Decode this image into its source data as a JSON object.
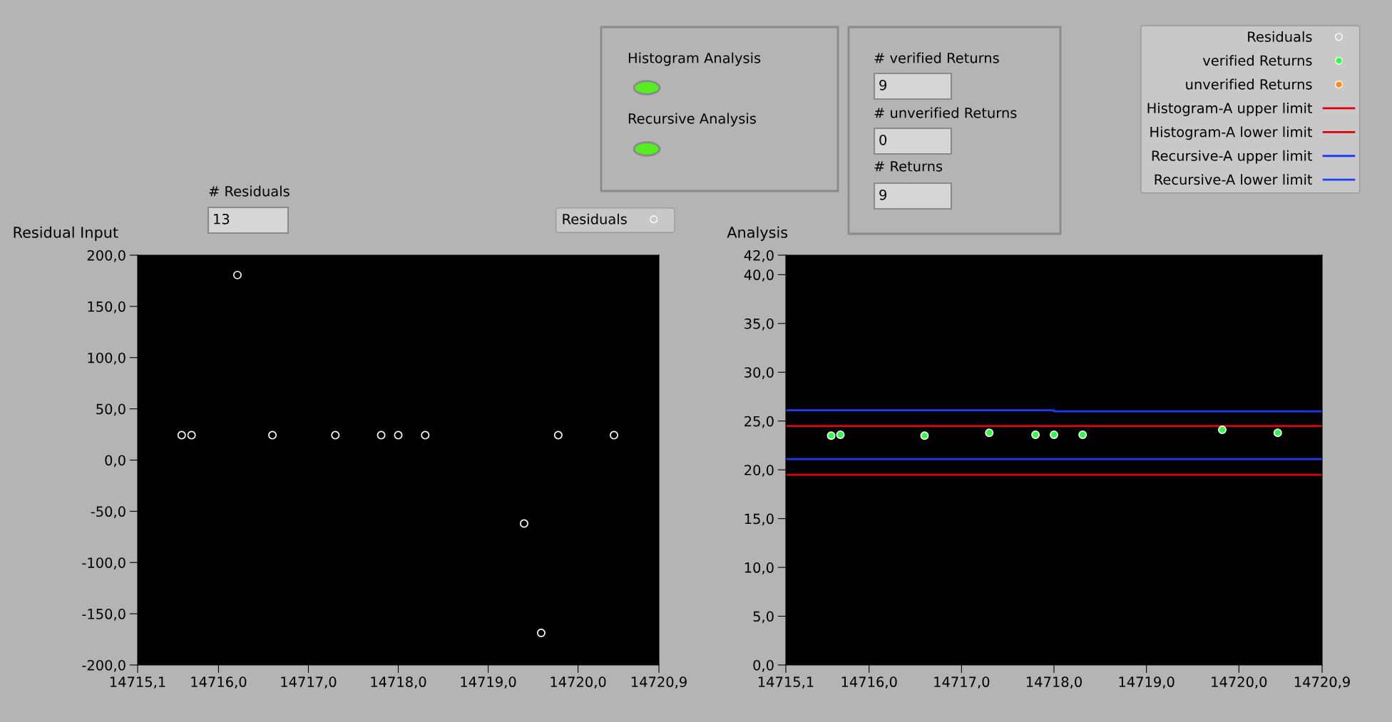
{
  "chart_data": [
    {
      "type": "scatter",
      "title": "Residual Input",
      "legend": "top right",
      "grid": false,
      "xlim": [
        14715.1,
        14720.9
      ],
      "xticks": [
        {
          "value": 14715.1,
          "label": "14715,1"
        },
        {
          "value": 14716.0,
          "label": "14716,0"
        },
        {
          "value": 14717.0,
          "label": "14717,0"
        },
        {
          "value": 14718.0,
          "label": "14718,0"
        },
        {
          "value": 14719.0,
          "label": "14719,0"
        },
        {
          "value": 14720.0,
          "label": "14720,0"
        },
        {
          "value": 14720.9,
          "label": "14720,9"
        }
      ],
      "ylim": [
        -200,
        200
      ],
      "yticks": [
        {
          "value": -200,
          "label": "-200,0"
        },
        {
          "value": -150,
          "label": "-150,0"
        },
        {
          "value": -100,
          "label": "-100,0"
        },
        {
          "value": -50,
          "label": "-50,0"
        },
        {
          "value": 0,
          "label": "0,0"
        },
        {
          "value": 50,
          "label": "50,0"
        },
        {
          "value": 100,
          "label": "100,0"
        },
        {
          "value": 150,
          "label": "150,0"
        },
        {
          "value": 200,
          "label": "200,0"
        }
      ],
      "series": [
        {
          "name": "Residuals",
          "type": "scatter",
          "marker": "circle",
          "color": "#ffffff",
          "x": [
            14715.59,
            14715.7,
            14716.21,
            14716.6,
            14717.3,
            14717.81,
            14718.0,
            14718.3,
            14719.4,
            14719.59,
            14719.78,
            14720.4
          ],
          "values": [
            24.3,
            24.3,
            180.6,
            24.3,
            24.3,
            24.3,
            24.3,
            24.3,
            -61.9,
            -168.7,
            24.3,
            24.3
          ]
        }
      ]
    },
    {
      "type": "scatter",
      "title": "Analysis",
      "legend": "top right",
      "grid": false,
      "xlim": [
        14715.1,
        14720.9
      ],
      "xticks": [
        {
          "value": 14715.1,
          "label": "14715,1"
        },
        {
          "value": 14716.0,
          "label": "14716,0"
        },
        {
          "value": 14717.0,
          "label": "14717,0"
        },
        {
          "value": 14718.0,
          "label": "14718,0"
        },
        {
          "value": 14719.0,
          "label": "14719,0"
        },
        {
          "value": 14720.0,
          "label": "14720,0"
        },
        {
          "value": 14720.9,
          "label": "14720,9"
        }
      ],
      "ylim": [
        0,
        42
      ],
      "yticks": [
        {
          "value": 0,
          "label": "0,0"
        },
        {
          "value": 5,
          "label": "5,0"
        },
        {
          "value": 10,
          "label": "10,0"
        },
        {
          "value": 15,
          "label": "15,0"
        },
        {
          "value": 20,
          "label": "20,0"
        },
        {
          "value": 25,
          "label": "25,0"
        },
        {
          "value": 30,
          "label": "30,0"
        },
        {
          "value": 35,
          "label": "35,0"
        },
        {
          "value": 40,
          "label": "40,0"
        },
        {
          "value": 42,
          "label": "42,0"
        }
      ],
      "series": [
        {
          "name": "Residuals",
          "type": "scatter",
          "marker": "circle",
          "color": "#ffffff"
        },
        {
          "name": "verified Returns",
          "type": "scatter",
          "marker": "circle",
          "color": "#33ff44",
          "x": [
            14715.59,
            14715.69,
            14716.6,
            14717.3,
            14717.8,
            14718.0,
            14718.31,
            14719.82,
            14720.42
          ],
          "values": [
            23.5,
            23.6,
            23.5,
            23.8,
            23.6,
            23.6,
            23.6,
            24.1,
            23.8
          ]
        },
        {
          "name": "unverified Returns",
          "type": "scatter",
          "marker": "circle",
          "color": "#ff8c1a"
        },
        {
          "name": "Histogram-A upper limit",
          "type": "line",
          "color": "#e00000",
          "x": [
            14715.1,
            14720.9
          ],
          "values": [
            24.5,
            24.5
          ]
        },
        {
          "name": "Histogram-A lower limit",
          "type": "line",
          "color": "#e00000",
          "x": [
            14715.1,
            14720.9
          ],
          "values": [
            19.5,
            19.5
          ]
        },
        {
          "name": "Recursive-A upper limit",
          "type": "line",
          "color": "#1a3cff",
          "x": [
            14715.1,
            14718.0,
            14718.0,
            14720.9
          ],
          "values": [
            26.1,
            26.1,
            26.0,
            26.0
          ]
        },
        {
          "name": "Recursive-A lower limit",
          "type": "line",
          "color": "#1a3cff",
          "x": [
            14715.1,
            14720.9
          ],
          "values": [
            21.1,
            21.1
          ]
        }
      ]
    },
    {
      "type": "other",
      "annotations": [
        "Histogram Analysis",
        "Recursive Analysis",
        "# verified Returns",
        "9",
        "# unverified Returns",
        "0",
        "# Returns",
        "9",
        "# Residuals",
        "13"
      ]
    }
  ]
}
